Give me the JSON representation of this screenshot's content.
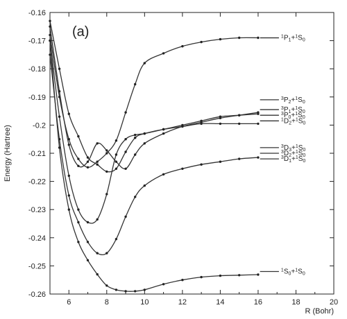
{
  "chart_data": {
    "type": "line",
    "panel_label": "(a)",
    "xlabel": "R (Bohr)",
    "ylabel": "Energy (Hartree)",
    "xlim": [
      5,
      20
    ],
    "ylim": [
      -0.26,
      -0.16
    ],
    "xticks": [
      6,
      8,
      10,
      12,
      14,
      16,
      18,
      20
    ],
    "yticks": [
      -0.16,
      -0.17,
      -0.18,
      -0.19,
      -0.2,
      -0.21,
      -0.22,
      -0.23,
      -0.24,
      -0.25,
      -0.26
    ],
    "ytick_labels": [
      "-0.16",
      "-0.17",
      "-0.18",
      "-0.19",
      "-0.2",
      "-0.21",
      "-0.22",
      "-0.23",
      "-0.24",
      "-0.25",
      "-0.26"
    ],
    "series": [
      {
        "x": [
          5,
          5.5,
          6,
          6.5,
          7,
          7.5,
          8,
          8.5,
          9,
          9.5,
          10,
          11,
          12,
          13,
          14,
          15,
          16
        ],
        "y": [
          -0.168,
          -0.19,
          -0.205,
          -0.212,
          -0.215,
          -0.213,
          -0.21,
          -0.2055,
          -0.1955,
          -0.1855,
          -0.178,
          -0.1745,
          -0.172,
          -0.1705,
          -0.1695,
          -0.169,
          -0.169
        ]
      },
      {
        "x": [
          5,
          5.5,
          6,
          6.5,
          7,
          7.5,
          8,
          8.5,
          9,
          9.5,
          10,
          11,
          12,
          13,
          14,
          15,
          16
        ],
        "y": [
          -0.163,
          -0.18,
          -0.196,
          -0.204,
          -0.2115,
          -0.214,
          -0.2165,
          -0.2155,
          -0.2095,
          -0.2045,
          -0.203,
          -0.2015,
          -0.2005,
          -0.1995,
          -0.1995,
          -0.1995,
          -0.1995
        ]
      },
      {
        "x": [
          5,
          5.5,
          6,
          6.5,
          7,
          7.5,
          8,
          8.5,
          9,
          9.5,
          10,
          11,
          12,
          13,
          14,
          15,
          16
        ],
        "y": [
          -0.165,
          -0.188,
          -0.207,
          -0.2145,
          -0.213,
          -0.2065,
          -0.209,
          -0.213,
          -0.2155,
          -0.2105,
          -0.2065,
          -0.203,
          -0.2005,
          -0.199,
          -0.1975,
          -0.1965,
          -0.1955
        ]
      },
      {
        "x": [
          5,
          5.5,
          6,
          6.5,
          7,
          7.5,
          8,
          8.5,
          9,
          9.5,
          10,
          11,
          12,
          13,
          14,
          15,
          16
        ],
        "y": [
          -0.17,
          -0.197,
          -0.218,
          -0.23,
          -0.2345,
          -0.2335,
          -0.2245,
          -0.2105,
          -0.205,
          -0.2035,
          -0.203,
          -0.2015,
          -0.2,
          -0.1985,
          -0.197,
          -0.1965,
          -0.196
        ]
      },
      {
        "x": [
          5,
          5.5,
          6,
          6.5,
          7,
          7.5,
          8,
          8.5,
          9,
          9.5,
          10,
          11,
          12,
          13,
          14,
          15,
          16
        ],
        "y": [
          -0.175,
          -0.205,
          -0.225,
          -0.2345,
          -0.2415,
          -0.2455,
          -0.2455,
          -0.2405,
          -0.2325,
          -0.2255,
          -0.2215,
          -0.2175,
          -0.2155,
          -0.214,
          -0.213,
          -0.212,
          -0.2115
        ]
      },
      {
        "x": [
          5,
          5.5,
          6,
          6.5,
          7,
          7.5,
          8,
          8.5,
          9,
          9.5,
          10,
          11,
          12,
          13,
          14,
          15,
          16
        ],
        "y": [
          -0.17,
          -0.208,
          -0.23,
          -0.2415,
          -0.248,
          -0.253,
          -0.257,
          -0.2585,
          -0.259,
          -0.259,
          -0.2585,
          -0.2565,
          -0.255,
          -0.254,
          -0.2535,
          -0.2533,
          -0.2531
        ]
      }
    ],
    "asymptotes": [
      {
        "y": -0.169,
        "label": [
          [
            "sup",
            "1"
          ],
          [
            "main",
            "P"
          ],
          [
            "sub",
            "1"
          ],
          [
            "main",
            "+"
          ],
          [
            "sup",
            "1"
          ],
          [
            "main",
            "S"
          ],
          [
            "sub",
            "0"
          ]
        ]
      },
      {
        "y": -0.191,
        "label": [
          [
            "sup",
            "3"
          ],
          [
            "main",
            "P"
          ],
          [
            "sub",
            "2"
          ],
          [
            "main",
            "+"
          ],
          [
            "sup",
            "1"
          ],
          [
            "main",
            "S"
          ],
          [
            "sub",
            "0"
          ]
        ]
      },
      {
        "y": -0.1945,
        "label": [
          [
            "sup",
            "3"
          ],
          [
            "main",
            "P"
          ],
          [
            "sub",
            "1"
          ],
          [
            "main",
            "+"
          ],
          [
            "sup",
            "1"
          ],
          [
            "main",
            "S"
          ],
          [
            "sub",
            "0"
          ]
        ]
      },
      {
        "y": -0.1965,
        "label": [
          [
            "sup",
            "3"
          ],
          [
            "main",
            "P"
          ],
          [
            "sub",
            "0"
          ],
          [
            "main",
            "+"
          ],
          [
            "sup",
            "1"
          ],
          [
            "main",
            "S"
          ],
          [
            "sub",
            "0"
          ]
        ]
      },
      {
        "y": -0.1985,
        "label": [
          [
            "sup",
            "1"
          ],
          [
            "main",
            "D"
          ],
          [
            "sub",
            "2"
          ],
          [
            "main",
            "+"
          ],
          [
            "sup",
            "1"
          ],
          [
            "main",
            "S"
          ],
          [
            "sub",
            "0"
          ]
        ]
      },
      {
        "y": -0.208,
        "label": [
          [
            "sup",
            "3"
          ],
          [
            "main",
            "D"
          ],
          [
            "sub",
            "3"
          ],
          [
            "main",
            "+"
          ],
          [
            "sup",
            "1"
          ],
          [
            "main",
            "S"
          ],
          [
            "sub",
            "0"
          ]
        ]
      },
      {
        "y": -0.21,
        "label": [
          [
            "sup",
            "3"
          ],
          [
            "main",
            "D"
          ],
          [
            "sub",
            "2"
          ],
          [
            "main",
            "+"
          ],
          [
            "sup",
            "1"
          ],
          [
            "main",
            "S"
          ],
          [
            "sub",
            "0"
          ]
        ]
      },
      {
        "y": -0.212,
        "label": [
          [
            "sup",
            "3"
          ],
          [
            "main",
            "D"
          ],
          [
            "sub",
            "1"
          ],
          [
            "main",
            "+"
          ],
          [
            "sup",
            "1"
          ],
          [
            "main",
            "S"
          ],
          [
            "sub",
            "0"
          ]
        ]
      },
      {
        "y": -0.252,
        "label": [
          [
            "sup",
            "1"
          ],
          [
            "main",
            "S"
          ],
          [
            "sub",
            "0"
          ],
          [
            "main",
            "+"
          ],
          [
            "sup",
            "1"
          ],
          [
            "main",
            "S"
          ],
          [
            "sub",
            "0"
          ]
        ]
      }
    ],
    "asymptote_x": [
      16.1,
      17.1
    ],
    "grid": false,
    "legend": "none"
  }
}
